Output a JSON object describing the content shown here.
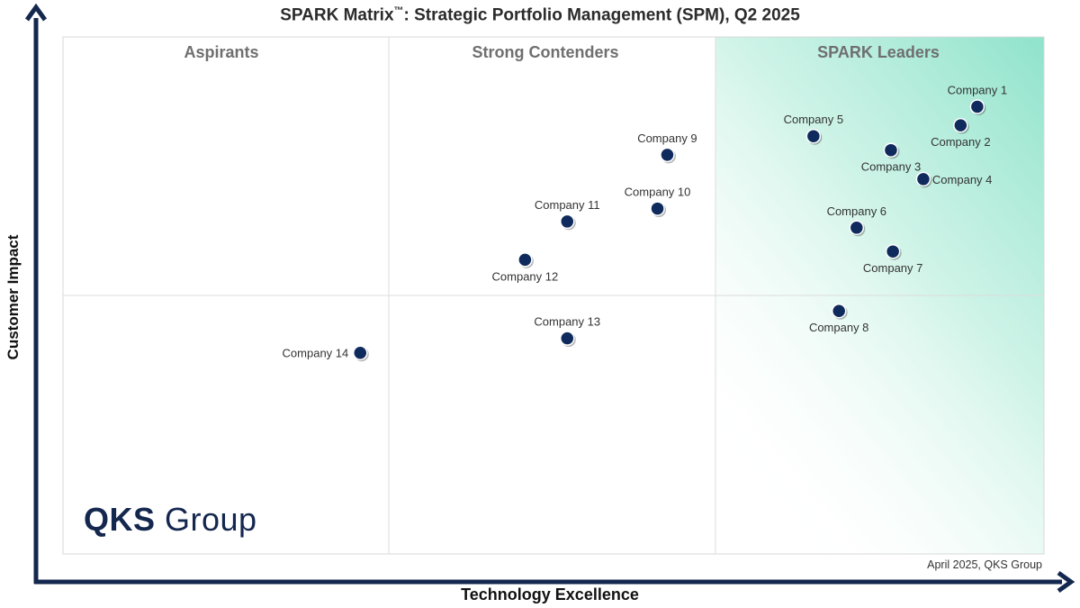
{
  "chart_data": {
    "type": "scatter",
    "title_main": "SPARK Matrix",
    "title_tm": "™",
    "title_rest": ": Strategic Portfolio Management (SPM), Q2 2025",
    "xlabel": "Technology Excellence",
    "ylabel": "Customer Impact",
    "xlim": [
      0,
      100
    ],
    "ylim": [
      0,
      100
    ],
    "quadrants": [
      "Aspirants",
      "Strong Contenders",
      "SPARK Leaders"
    ],
    "points": [
      {
        "name": "Company 1",
        "x": 93.2,
        "y": 86.5,
        "label_pos": "above"
      },
      {
        "name": "Company 2",
        "x": 91.5,
        "y": 82.9,
        "label_pos": "below"
      },
      {
        "name": "Company 3",
        "x": 84.4,
        "y": 78.1,
        "label_pos": "below"
      },
      {
        "name": "Company 4",
        "x": 87.7,
        "y": 72.5,
        "label_pos": "right"
      },
      {
        "name": "Company 5",
        "x": 76.5,
        "y": 80.8,
        "label_pos": "above"
      },
      {
        "name": "Company 6",
        "x": 80.9,
        "y": 63.1,
        "label_pos": "above"
      },
      {
        "name": "Company 7",
        "x": 84.6,
        "y": 58.5,
        "label_pos": "below"
      },
      {
        "name": "Company 8",
        "x": 79.1,
        "y": 47.0,
        "label_pos": "below"
      },
      {
        "name": "Company 9",
        "x": 61.6,
        "y": 77.2,
        "label_pos": "above"
      },
      {
        "name": "Company 10",
        "x": 60.6,
        "y": 66.8,
        "label_pos": "above"
      },
      {
        "name": "Company 11",
        "x": 51.4,
        "y": 64.3,
        "label_pos": "above"
      },
      {
        "name": "Company 12",
        "x": 47.1,
        "y": 56.9,
        "label_pos": "below"
      },
      {
        "name": "Company 13",
        "x": 51.4,
        "y": 41.7,
        "label_pos": "above"
      },
      {
        "name": "Company 14",
        "x": 30.3,
        "y": 38.9,
        "label_pos": "left"
      }
    ]
  },
  "footer": {
    "credit": "April 2025, QKS Group",
    "logo_bold": "QKS",
    "logo_rest": " Group"
  },
  "colors": {
    "axis": "#14274e",
    "point": "#0f2a5c",
    "leaders_gradient": "#8fe3cb"
  }
}
